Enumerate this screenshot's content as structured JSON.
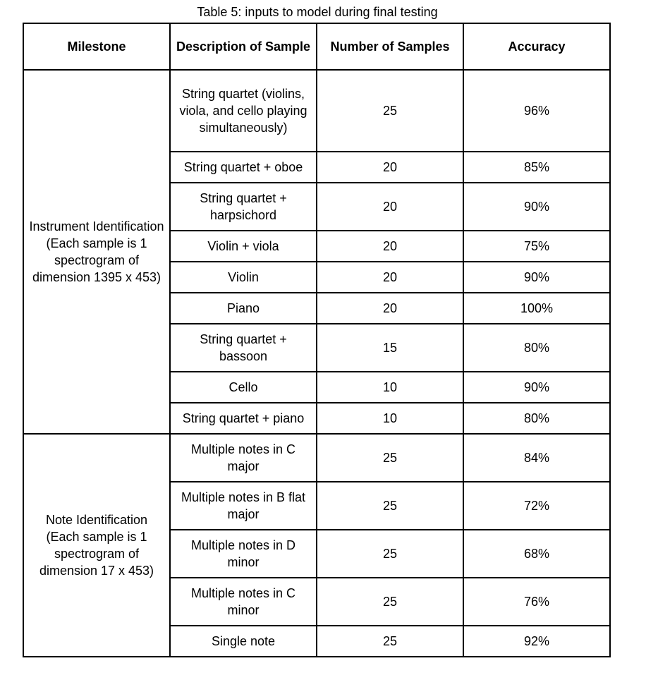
{
  "caption": "Table 5: inputs to model during final testing",
  "headers": {
    "milestone": "Milestone",
    "description": "Description of Sample",
    "num_samples": "Number of Samples",
    "accuracy": "Accuracy"
  },
  "groups": [
    {
      "milestone": "Instrument Identification (Each sample is 1 spectrogram of dimension 1395 x 453)",
      "rows": [
        {
          "description": "String quartet (violins, viola, and cello playing simultaneously)",
          "num_samples": "25",
          "accuracy": "96%"
        },
        {
          "description": "String quartet + oboe",
          "num_samples": "20",
          "accuracy": "85%"
        },
        {
          "description": "String quartet + harpsichord",
          "num_samples": "20",
          "accuracy": "90%"
        },
        {
          "description": "Violin + viola",
          "num_samples": "20",
          "accuracy": "75%"
        },
        {
          "description": "Violin",
          "num_samples": "20",
          "accuracy": "90%"
        },
        {
          "description": "Piano",
          "num_samples": "20",
          "accuracy": "100%"
        },
        {
          "description": "String quartet + bassoon",
          "num_samples": "15",
          "accuracy": "80%"
        },
        {
          "description": "Cello",
          "num_samples": "10",
          "accuracy": "90%"
        },
        {
          "description": "String quartet + piano",
          "num_samples": "10",
          "accuracy": "80%"
        }
      ]
    },
    {
      "milestone": "Note Identification (Each sample is 1 spectrogram of dimension 17 x 453)",
      "rows": [
        {
          "description": "Multiple notes in C major",
          "num_samples": "25",
          "accuracy": "84%"
        },
        {
          "description": "Multiple notes in B flat major",
          "num_samples": "25",
          "accuracy": "72%"
        },
        {
          "description": "Multiple notes in D minor",
          "num_samples": "25",
          "accuracy": "68%"
        },
        {
          "description": "Multiple notes in C minor",
          "num_samples": "25",
          "accuracy": "76%"
        },
        {
          "description": "Single note",
          "num_samples": "25",
          "accuracy": "92%"
        }
      ]
    }
  ]
}
